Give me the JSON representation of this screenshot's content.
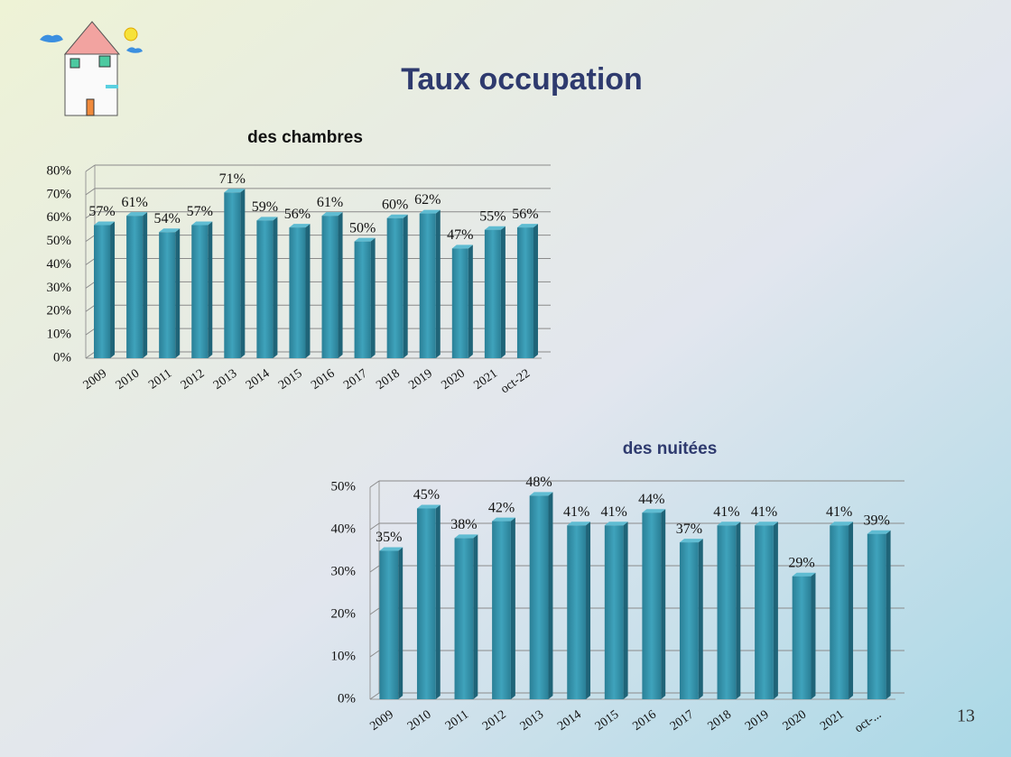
{
  "title": "Taux occupation",
  "page_number": "13",
  "chart_data": [
    {
      "type": "bar",
      "title": "des chambres",
      "color": "#2f8ea6",
      "categories": [
        "2009",
        "2010",
        "2011",
        "2012",
        "2013",
        "2014",
        "2015",
        "2016",
        "2017",
        "2018",
        "2019",
        "2020",
        "2021",
        "oct-22"
      ],
      "values": [
        57,
        61,
        54,
        57,
        71,
        59,
        56,
        61,
        50,
        60,
        62,
        47,
        55,
        56
      ],
      "value_labels": [
        "57%",
        "61%",
        "54%",
        "57%",
        "71%",
        "59%",
        "56%",
        "61%",
        "50%",
        "60%",
        "62%",
        "47%",
        "55%",
        "56%"
      ],
      "ylim": [
        0,
        80
      ],
      "yticks": [
        {
          "value": 0,
          "label": "0%"
        },
        {
          "value": 10,
          "label": "10%"
        },
        {
          "value": 20,
          "label": "20%"
        },
        {
          "value": 30,
          "label": "30%"
        },
        {
          "value": 40,
          "label": "40%"
        },
        {
          "value": 50,
          "label": "50%"
        },
        {
          "value": 60,
          "label": "60%"
        },
        {
          "value": 70,
          "label": "70%"
        },
        {
          "value": 80,
          "label": "80%"
        }
      ],
      "grid": true
    },
    {
      "type": "bar",
      "title": "des nuitées",
      "color": "#2f8ea6",
      "categories": [
        "2009",
        "2010",
        "2011",
        "2012",
        "2013",
        "2014",
        "2015",
        "2016",
        "2017",
        "2018",
        "2019",
        "2020",
        "2021",
        "oct-..."
      ],
      "values": [
        35,
        45,
        38,
        42,
        48,
        41,
        41,
        44,
        37,
        41,
        41,
        29,
        41,
        39
      ],
      "value_labels": [
        "35%",
        "45%",
        "38%",
        "42%",
        "48%",
        "41%",
        "41%",
        "44%",
        "37%",
        "41%",
        "41%",
        "29%",
        "41%",
        "39%"
      ],
      "ylim": [
        0,
        50
      ],
      "yticks": [
        {
          "value": 0,
          "label": "0%"
        },
        {
          "value": 10,
          "label": "10%"
        },
        {
          "value": 20,
          "label": "20%"
        },
        {
          "value": 30,
          "label": "30%"
        },
        {
          "value": 40,
          "label": "40%"
        },
        {
          "value": 50,
          "label": "50%"
        }
      ],
      "grid": true
    }
  ]
}
